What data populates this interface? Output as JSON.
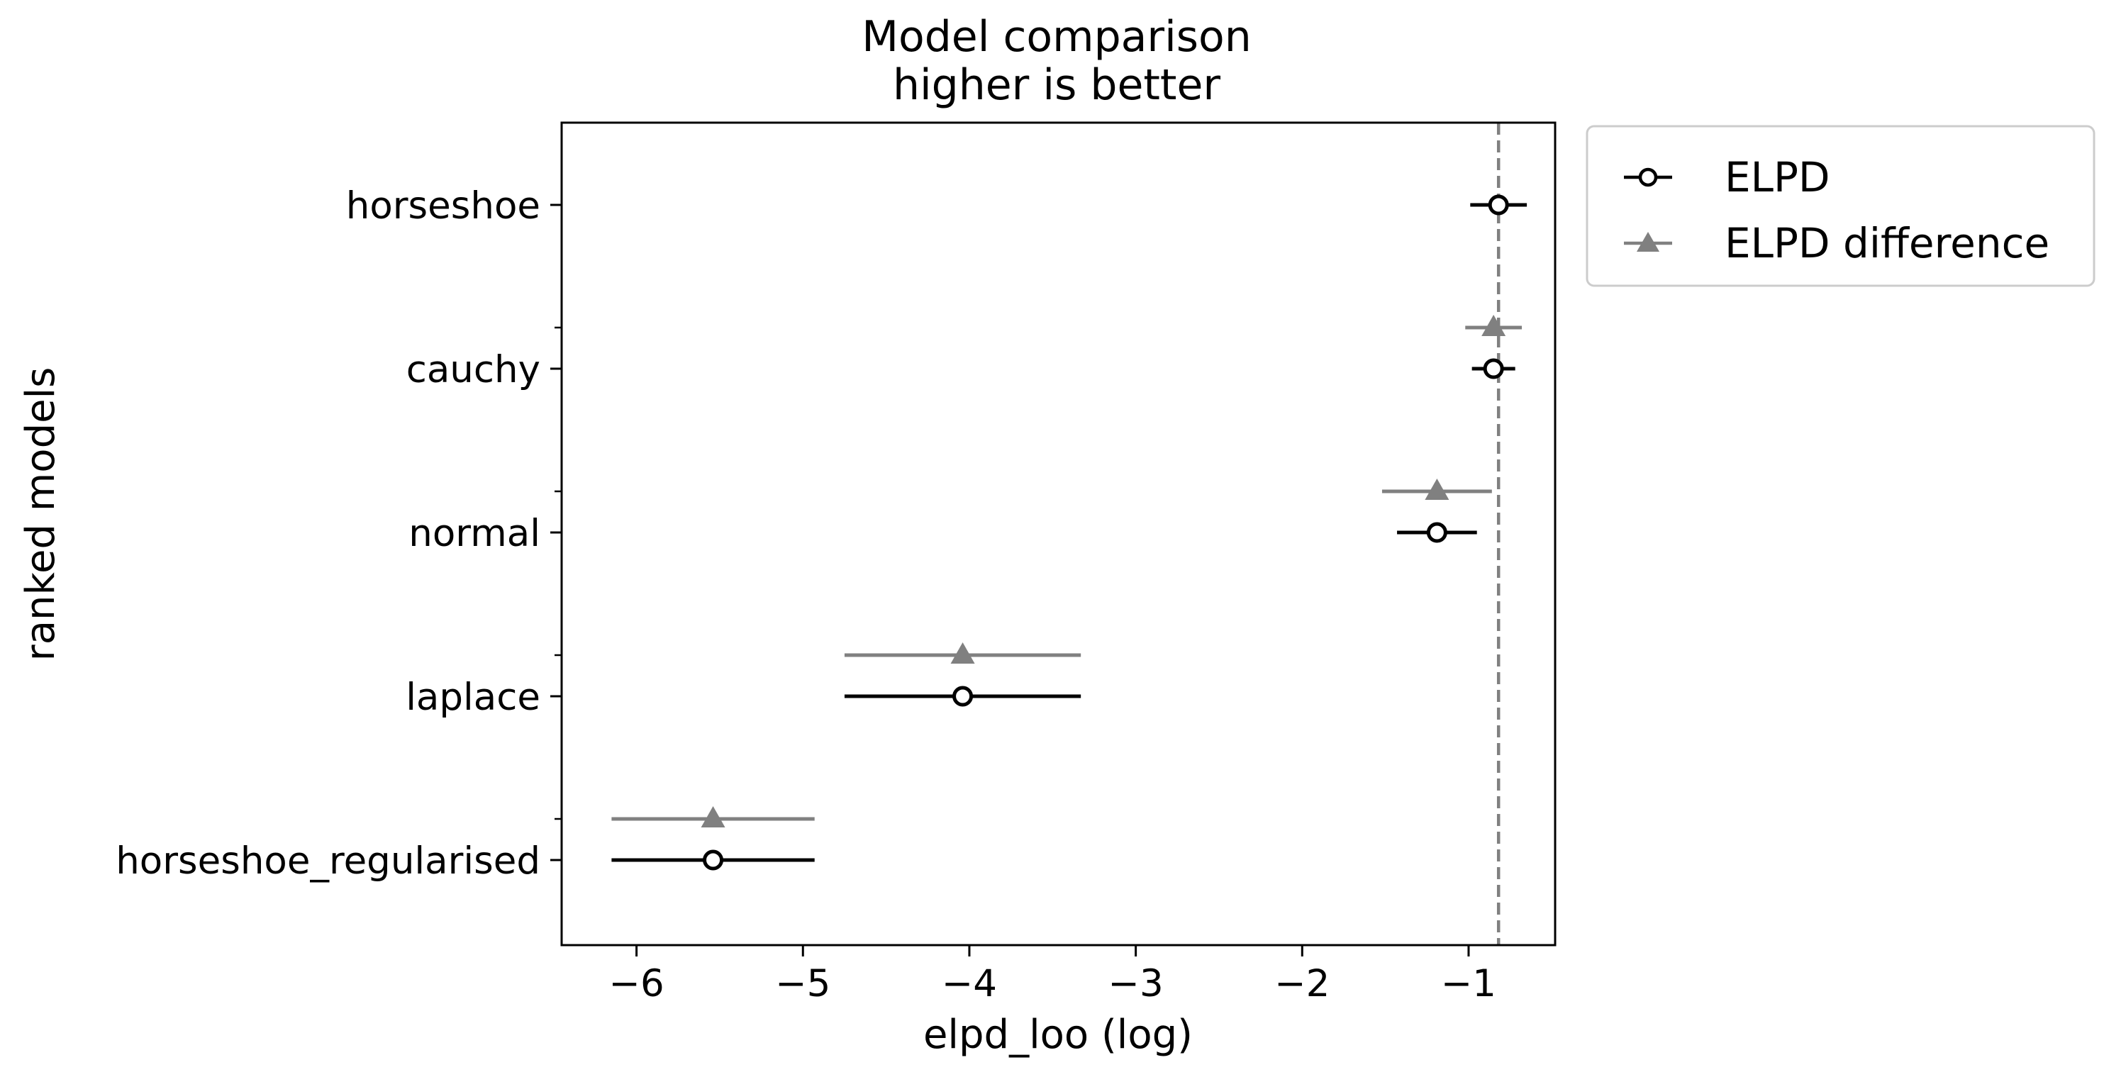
{
  "chart_data": {
    "type": "scatter",
    "title": "Model comparison",
    "subtitle": "higher is better",
    "xlabel": "elpd_loo (log)",
    "ylabel": "ranked models",
    "xlim": [
      -6.45,
      -0.48
    ],
    "xticks": [
      -6,
      -5,
      -4,
      -3,
      -2,
      -1
    ],
    "xtick_labels": [
      "−6",
      "−5",
      "−4",
      "−3",
      "−2",
      "−1"
    ],
    "categories": [
      "horseshoe",
      "cauchy",
      "normal",
      "laplace",
      "horseshoe_regularised"
    ],
    "reference_line": {
      "x": -0.82,
      "style": "dashed",
      "color": "#808080"
    },
    "legend_position": "outside-right-top",
    "grid": false,
    "series": [
      {
        "name": "ELPD",
        "marker": "open-circle",
        "color": "#000000",
        "values": [
          -0.82,
          -0.85,
          -1.19,
          -4.04,
          -5.54
        ],
        "errors": [
          0.17,
          0.13,
          0.24,
          0.71,
          0.61
        ]
      },
      {
        "name": "ELPD difference",
        "marker": "triangle",
        "color": "#808080",
        "values": [
          null,
          -0.85,
          -1.19,
          -4.04,
          -5.54
        ],
        "errors": [
          null,
          0.17,
          0.33,
          0.71,
          0.61
        ]
      }
    ]
  }
}
